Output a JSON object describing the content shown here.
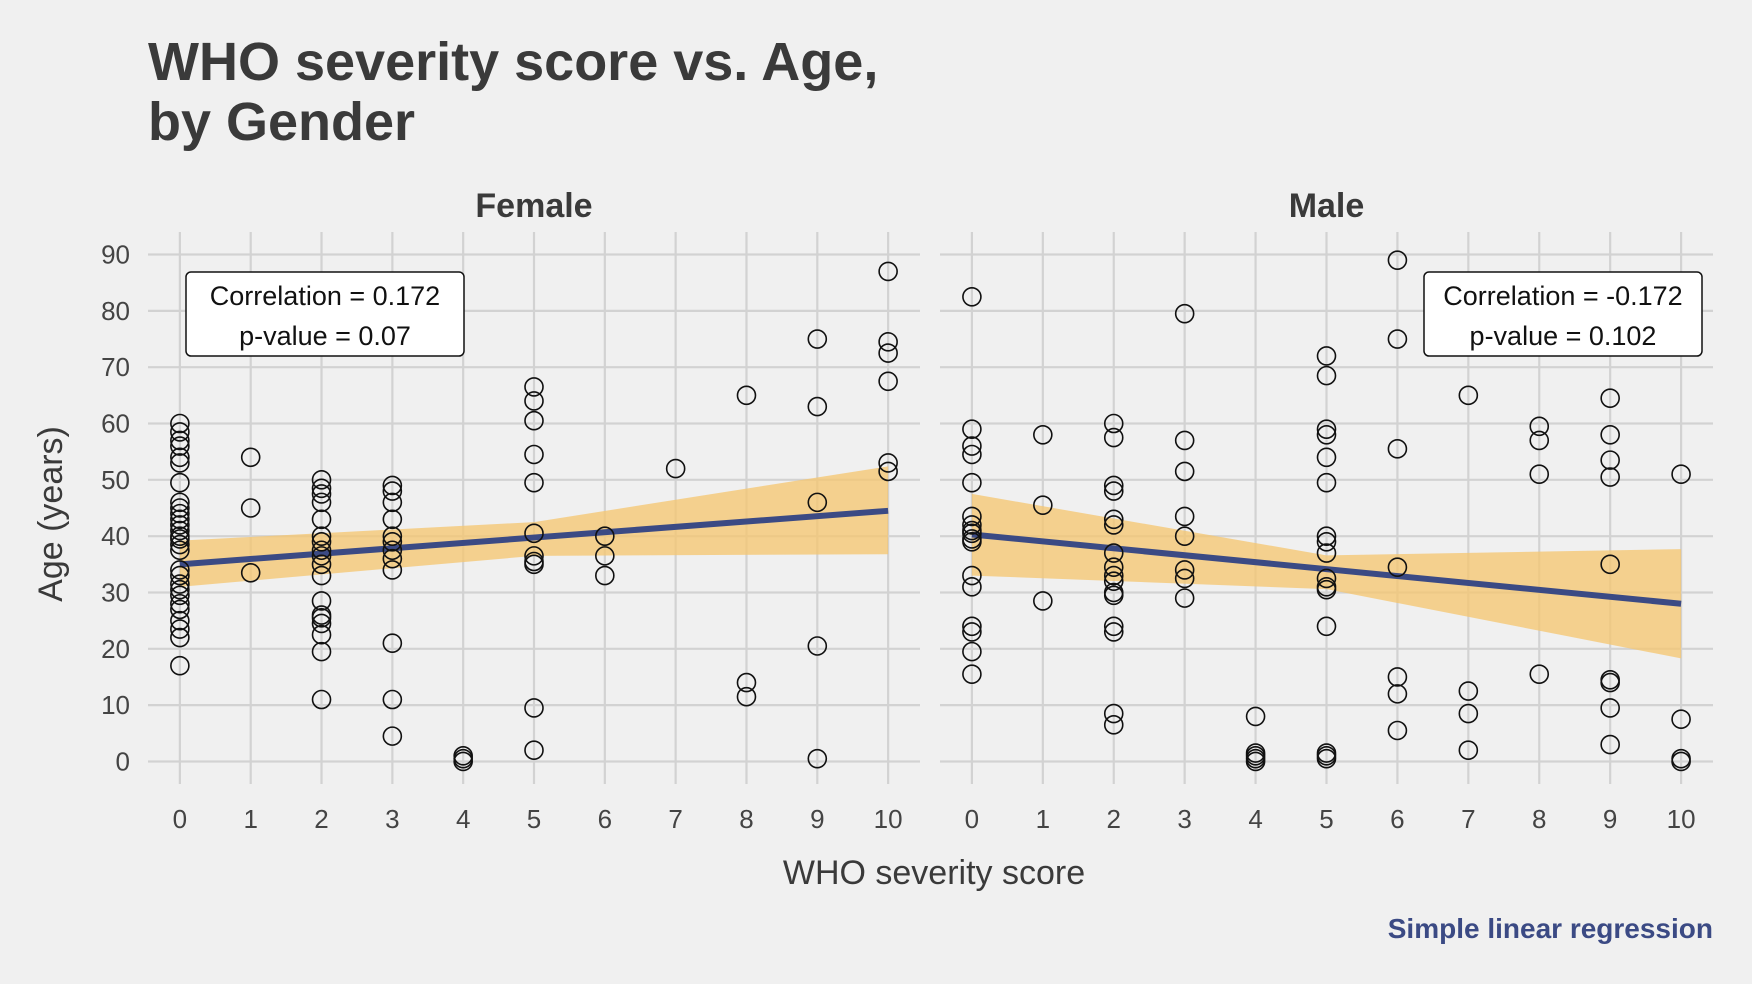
{
  "colors": {
    "background": "#f0f0f0",
    "grid": "#d2d2d2",
    "point_stroke": "#111111",
    "ribbon": "#f5c66e",
    "regression_line": "#3b4a84",
    "caption": "#3b4a84"
  },
  "chart_data": {
    "type": "scatter",
    "title_line1": "WHO severity score vs. Age,",
    "title_line2": "by Gender",
    "xlabel": "WHO severity score",
    "ylabel": "Age (years)",
    "caption": "Simple linear regression",
    "xlim": [
      -0.45,
      10.45
    ],
    "ylim": [
      -4,
      94
    ],
    "x_ticks": [
      "0",
      "1",
      "2",
      "3",
      "4",
      "5",
      "6",
      "7",
      "8",
      "9",
      "10"
    ],
    "y_ticks": [
      "0",
      "10",
      "20",
      "30",
      "40",
      "50",
      "60",
      "70",
      "80",
      "90"
    ],
    "grid": true,
    "annotation_position": "top corner of each panel",
    "panels": [
      {
        "name": "Female",
        "correlation_text": "Correlation = 0.172",
        "pvalue_text": "p-value = 0.07",
        "annotation_corner": "top-left",
        "regression": {
          "x": [
            0,
            10
          ],
          "y": [
            35.0,
            44.5
          ]
        },
        "ribbon": {
          "x": [
            0,
            5,
            10
          ],
          "lower": [
            31,
            36.5,
            36.8
          ],
          "upper": [
            39.2,
            42.5,
            52.4
          ]
        },
        "points": [
          [
            0,
            60
          ],
          [
            0,
            58.5
          ],
          [
            0,
            57
          ],
          [
            0,
            56
          ],
          [
            0,
            54
          ],
          [
            0,
            53
          ],
          [
            0,
            49.5
          ],
          [
            0,
            46
          ],
          [
            0,
            45
          ],
          [
            0,
            44
          ],
          [
            0,
            43
          ],
          [
            0,
            42
          ],
          [
            0,
            41
          ],
          [
            0,
            40
          ],
          [
            0,
            39.5
          ],
          [
            0,
            38.5
          ],
          [
            0,
            37.5
          ],
          [
            0,
            34
          ],
          [
            0,
            33
          ],
          [
            0,
            31.5
          ],
          [
            0,
            30.5
          ],
          [
            0,
            29.5
          ],
          [
            0,
            28
          ],
          [
            0,
            27
          ],
          [
            0,
            25
          ],
          [
            0,
            23.5
          ],
          [
            0,
            22
          ],
          [
            0,
            17
          ],
          [
            1,
            54
          ],
          [
            1,
            45
          ],
          [
            1,
            33.5
          ],
          [
            2,
            50
          ],
          [
            2,
            48.5
          ],
          [
            2,
            47.5
          ],
          [
            2,
            46
          ],
          [
            2,
            43
          ],
          [
            2,
            40
          ],
          [
            2,
            39
          ],
          [
            2,
            37.5
          ],
          [
            2,
            36.5
          ],
          [
            2,
            35
          ],
          [
            2,
            33
          ],
          [
            2,
            28.5
          ],
          [
            2,
            26
          ],
          [
            2,
            25.5
          ],
          [
            2,
            24.5
          ],
          [
            2,
            22.5
          ],
          [
            2,
            19.5
          ],
          [
            2,
            11
          ],
          [
            3,
            49
          ],
          [
            3,
            48
          ],
          [
            3,
            46
          ],
          [
            3,
            43
          ],
          [
            3,
            40
          ],
          [
            3,
            39
          ],
          [
            3,
            37.5
          ],
          [
            3,
            36
          ],
          [
            3,
            34
          ],
          [
            3,
            21
          ],
          [
            3,
            11
          ],
          [
            3,
            4.5
          ],
          [
            4,
            1
          ],
          [
            4,
            0.5
          ],
          [
            4,
            0
          ],
          [
            5,
            66.5
          ],
          [
            5,
            64
          ],
          [
            5,
            60.5
          ],
          [
            5,
            54.5
          ],
          [
            5,
            49.5
          ],
          [
            5,
            40.5
          ],
          [
            5,
            36.5
          ],
          [
            5,
            35.5
          ],
          [
            5,
            35
          ],
          [
            5,
            9.5
          ],
          [
            5,
            2
          ],
          [
            6,
            40
          ],
          [
            6,
            36.5
          ],
          [
            6,
            33
          ],
          [
            7,
            52
          ],
          [
            8,
            65
          ],
          [
            8,
            14
          ],
          [
            8,
            11.5
          ],
          [
            9,
            75
          ],
          [
            9,
            63
          ],
          [
            9,
            46
          ],
          [
            9,
            20.5
          ],
          [
            9,
            0.5
          ],
          [
            10,
            87
          ],
          [
            10,
            74.5
          ],
          [
            10,
            72.5
          ],
          [
            10,
            67.5
          ],
          [
            10,
            53
          ],
          [
            10,
            51.5
          ]
        ]
      },
      {
        "name": "Male",
        "correlation_text": "Correlation = -0.172",
        "pvalue_text": "p-value = 0.102",
        "annotation_corner": "top-right",
        "regression": {
          "x": [
            0,
            10
          ],
          "y": [
            40.3,
            28.0
          ]
        },
        "ribbon": {
          "x": [
            0,
            5,
            10
          ],
          "lower": [
            33.0,
            30.6,
            18.3
          ],
          "upper": [
            47.5,
            36.6,
            37.7
          ]
        },
        "points": [
          [
            0,
            82.5
          ],
          [
            0,
            59
          ],
          [
            0,
            56
          ],
          [
            0,
            54.5
          ],
          [
            0,
            49.5
          ],
          [
            0,
            43.5
          ],
          [
            0,
            42
          ],
          [
            0,
            41
          ],
          [
            0,
            40.5
          ],
          [
            0,
            39.5
          ],
          [
            0,
            39
          ],
          [
            0,
            33
          ],
          [
            0,
            31
          ],
          [
            0,
            24
          ],
          [
            0,
            23
          ],
          [
            0,
            19.5
          ],
          [
            0,
            15.5
          ],
          [
            1,
            58
          ],
          [
            1,
            45.5
          ],
          [
            1,
            28.5
          ],
          [
            2,
            60
          ],
          [
            2,
            57.5
          ],
          [
            2,
            49
          ],
          [
            2,
            48
          ],
          [
            2,
            43
          ],
          [
            2,
            42
          ],
          [
            2,
            37
          ],
          [
            2,
            34.5
          ],
          [
            2,
            33
          ],
          [
            2,
            32
          ],
          [
            2,
            30
          ],
          [
            2,
            29.5
          ],
          [
            2,
            24
          ],
          [
            2,
            23
          ],
          [
            2,
            8.5
          ],
          [
            2,
            6.5
          ],
          [
            3,
            79.5
          ],
          [
            3,
            57
          ],
          [
            3,
            51.5
          ],
          [
            3,
            43.5
          ],
          [
            3,
            40
          ],
          [
            3,
            34
          ],
          [
            3,
            32.5
          ],
          [
            3,
            29
          ],
          [
            4,
            8
          ],
          [
            4,
            1.5
          ],
          [
            4,
            1
          ],
          [
            4,
            0.5
          ],
          [
            4,
            0
          ],
          [
            5,
            72
          ],
          [
            5,
            68.5
          ],
          [
            5,
            59
          ],
          [
            5,
            58
          ],
          [
            5,
            54
          ],
          [
            5,
            49.5
          ],
          [
            5,
            40
          ],
          [
            5,
            39
          ],
          [
            5,
            37
          ],
          [
            5,
            32.5
          ],
          [
            5,
            31
          ],
          [
            5,
            30.5
          ],
          [
            5,
            24
          ],
          [
            5,
            1.5
          ],
          [
            5,
            1
          ],
          [
            5,
            0.5
          ],
          [
            6,
            89
          ],
          [
            6,
            75
          ],
          [
            6,
            55.5
          ],
          [
            6,
            34.5
          ],
          [
            6,
            15
          ],
          [
            6,
            12
          ],
          [
            6,
            5.5
          ],
          [
            7,
            65
          ],
          [
            7,
            12.5
          ],
          [
            7,
            8.5
          ],
          [
            7,
            2
          ],
          [
            8,
            59.5
          ],
          [
            8,
            57
          ],
          [
            8,
            51
          ],
          [
            8,
            15.5
          ],
          [
            9,
            64.5
          ],
          [
            9,
            58
          ],
          [
            9,
            53.5
          ],
          [
            9,
            50.5
          ],
          [
            9,
            35
          ],
          [
            9,
            14.5
          ],
          [
            9,
            14
          ],
          [
            9,
            9.5
          ],
          [
            9,
            3
          ],
          [
            10,
            51
          ],
          [
            10,
            7.5
          ],
          [
            10,
            0.5
          ],
          [
            10,
            0
          ]
        ]
      }
    ]
  }
}
